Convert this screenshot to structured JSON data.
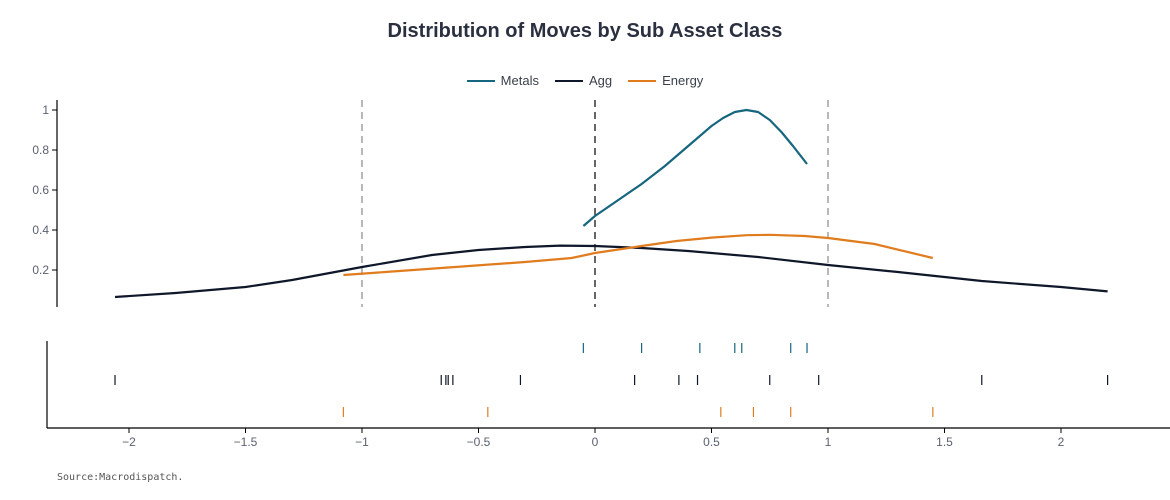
{
  "chart_data": {
    "type": "line",
    "title": "Distribution of Moves by Sub Asset Class",
    "source": "Source:Macrodispatch.",
    "legend_position": "top-center",
    "xlim": [
      -2.3,
      2.5
    ],
    "ylim": [
      0,
      1.05
    ],
    "x_ticks": [
      {
        "v": -2,
        "label": "−2"
      },
      {
        "v": -1.5,
        "label": "−1.5"
      },
      {
        "v": -1,
        "label": "−1"
      },
      {
        "v": -0.5,
        "label": "−0.5"
      },
      {
        "v": 0,
        "label": "0"
      },
      {
        "v": 0.5,
        "label": "0.5"
      },
      {
        "v": 1,
        "label": "1"
      },
      {
        "v": 1.5,
        "label": "1.5"
      },
      {
        "v": 2,
        "label": "2"
      }
    ],
    "y_ticks": [
      {
        "v": 0.2,
        "label": "0.2"
      },
      {
        "v": 0.4,
        "label": "0.4"
      },
      {
        "v": 0.6,
        "label": "0.6"
      },
      {
        "v": 0.8,
        "label": "0.8"
      },
      {
        "v": 1,
        "label": "1"
      }
    ],
    "vlines": [
      {
        "x": -1,
        "color": "#888888"
      },
      {
        "x": 0,
        "color": "#000000"
      },
      {
        "x": 1,
        "color": "#888888"
      }
    ],
    "series": [
      {
        "name": "Metals",
        "color": "#16667f",
        "x": [
          -0.05,
          0.0,
          0.1,
          0.2,
          0.3,
          0.4,
          0.5,
          0.55,
          0.6,
          0.65,
          0.7,
          0.75,
          0.8,
          0.85,
          0.91
        ],
        "y": [
          0.42,
          0.47,
          0.55,
          0.63,
          0.72,
          0.82,
          0.92,
          0.96,
          0.99,
          1.0,
          0.99,
          0.95,
          0.89,
          0.82,
          0.73
        ],
        "rug": [
          -0.05,
          0.2,
          0.45,
          0.6,
          0.63,
          0.84,
          0.91
        ]
      },
      {
        "name": "Agg",
        "color": "#0f172a",
        "x": [
          -2.06,
          -1.8,
          -1.5,
          -1.3,
          -1.0,
          -0.7,
          -0.5,
          -0.3,
          -0.15,
          0.0,
          0.2,
          0.4,
          0.7,
          1.0,
          1.3,
          1.66,
          2.0,
          2.2
        ],
        "y": [
          0.065,
          0.085,
          0.115,
          0.15,
          0.215,
          0.275,
          0.3,
          0.315,
          0.322,
          0.32,
          0.31,
          0.295,
          0.265,
          0.225,
          0.19,
          0.145,
          0.115,
          0.093
        ],
        "rug": [
          -2.06,
          -0.66,
          -0.64,
          -0.63,
          -0.61,
          -0.32,
          0.17,
          0.36,
          0.44,
          0.75,
          0.96,
          1.66,
          2.2
        ]
      },
      {
        "name": "Energy",
        "color": "#e07c1e",
        "x": [
          -1.08,
          -0.9,
          -0.6,
          -0.3,
          -0.1,
          0.0,
          0.2,
          0.35,
          0.5,
          0.65,
          0.75,
          0.9,
          1.0,
          1.2,
          1.45
        ],
        "y": [
          0.175,
          0.19,
          0.215,
          0.24,
          0.26,
          0.285,
          0.32,
          0.345,
          0.362,
          0.374,
          0.376,
          0.37,
          0.36,
          0.33,
          0.26
        ],
        "rug": [
          -1.08,
          -0.46,
          0.54,
          0.68,
          0.84,
          1.45
        ]
      }
    ]
  }
}
